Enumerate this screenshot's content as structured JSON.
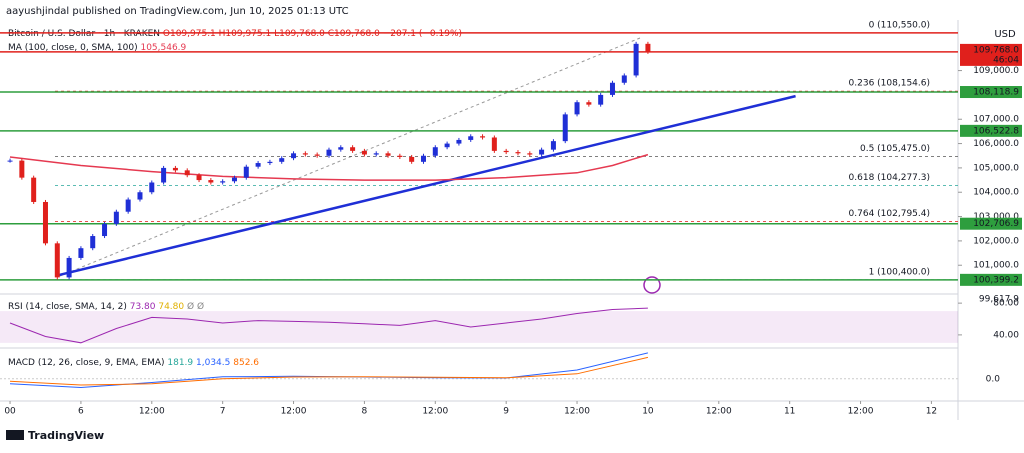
{
  "header": {
    "byline": "aayushjindal published on TradingView.com, Jun 10, 2025 01:13 UTC"
  },
  "chart_data": {
    "type": "candlestick",
    "symbol": "Bitcoin / U.S. Dollar · 1h · KRAKEN",
    "ohlc": "O109,975.1 H109,975.1 L109,768.0 C109,768.0 −207.1 (−0.19%)",
    "currency": "USD",
    "color_up": "#1f2fd6",
    "color_down": "#e0201c",
    "x": [
      0,
      2,
      4,
      6,
      8,
      10,
      12,
      14,
      16,
      18,
      20,
      22,
      24,
      26,
      28,
      30,
      32,
      34,
      36,
      38,
      40,
      42,
      44,
      46,
      48,
      50,
      52,
      54,
      56,
      58,
      60,
      62,
      64,
      66,
      68,
      70,
      72,
      74,
      76,
      78,
      80,
      82,
      84,
      86,
      88,
      90,
      92,
      94,
      96,
      98,
      100,
      102,
      104,
      106,
      108
    ],
    "values": [
      105300,
      104600,
      103600,
      101900,
      100500,
      101300,
      101700,
      102200,
      102700,
      103200,
      103700,
      104000,
      104400,
      105000,
      104900,
      104700,
      104500,
      104400,
      104450,
      104600,
      105050,
      105200,
      105250,
      105400,
      105600,
      105550,
      105500,
      105750,
      105850,
      105700,
      105550,
      105600,
      105500,
      105450,
      105250,
      105500,
      105850,
      106000,
      106150,
      106300,
      106250,
      105700,
      105650,
      105600,
      105550,
      105750,
      106100,
      107200,
      107700,
      107600,
      108000,
      108500,
      108800,
      110100,
      109768
    ],
    "xlim": [
      -1.7,
      160.5
    ],
    "xticks": [
      {
        "value": 0,
        "label": "00"
      },
      {
        "value": 12,
        "label": "6"
      },
      {
        "value": 24,
        "label": "12:00"
      },
      {
        "value": 36,
        "label": "7"
      },
      {
        "value": 48,
        "label": "12:00"
      },
      {
        "value": 60,
        "label": "8"
      },
      {
        "value": 72,
        "label": "12:00"
      },
      {
        "value": 84,
        "label": "9"
      },
      {
        "value": 96,
        "label": "12:00"
      },
      {
        "value": 108,
        "label": "10"
      },
      {
        "value": 120,
        "label": "12:00"
      },
      {
        "value": 132,
        "label": "11"
      },
      {
        "value": 144,
        "label": "12:00"
      },
      {
        "value": 156,
        "label": "12"
      }
    ],
    "ylim": [
      99900,
      110750
    ],
    "yticks": [
      {
        "value": 109000,
        "label": "109,000.0"
      },
      {
        "value": 107000,
        "label": "107,000.0"
      },
      {
        "value": 106000,
        "label": "106,000.0"
      },
      {
        "value": 105000,
        "label": "105,000.0"
      },
      {
        "value": 104000,
        "label": "104,000.0"
      },
      {
        "value": 103000,
        "label": "103,000.0"
      },
      {
        "value": 102000,
        "label": "102,000.0"
      },
      {
        "value": 101000,
        "label": "101,000.0"
      }
    ],
    "ma": {
      "label": "MA (100, close, 0, SMA, 100)",
      "value_label": "105,546.9",
      "color": "#e53950",
      "x": [
        0,
        12,
        24,
        36,
        48,
        60,
        72,
        84,
        96,
        102,
        108
      ],
      "values": [
        105450,
        105100,
        104850,
        104650,
        104550,
        104500,
        104500,
        104600,
        104800,
        105100,
        105546.9
      ]
    },
    "trendline": {
      "color": "#1f2fd6",
      "x": [
        8,
        133
      ],
      "values": [
        100580,
        107950
      ]
    },
    "levels": {
      "color": "#2e9e3e",
      "items": [
        {
          "value": 108118.9,
          "label": "108,118.9"
        },
        {
          "value": 106522.8,
          "label": "106,522.8"
        },
        {
          "value": 102706.9,
          "label": "102,706.9"
        },
        {
          "value": 100399.2,
          "label": "100,399.2"
        }
      ]
    },
    "last_price": {
      "value": 109768,
      "label": "109,768.0",
      "countdown": "46:04",
      "color": "#e0201c"
    },
    "low_badge": {
      "value": 99617.9,
      "label": "99,617.9"
    },
    "fib": [
      {
        "value": 110550,
        "label": "0 (110,550.0)",
        "color": "#8a8a8a"
      },
      {
        "value": 108154.6,
        "label": "0.236 (108,154.6)",
        "color": "#e53935"
      },
      {
        "value": 105475,
        "label": "0.5 (105,475.0)",
        "color": "#555555"
      },
      {
        "value": 104277.3,
        "label": "0.618 (104,277.3)",
        "color": "#26a69a"
      },
      {
        "value": 102795.4,
        "label": "0.764 (102,795.4)",
        "color": "#e53935"
      },
      {
        "value": 100400,
        "label": "1 (100,400.0)",
        "color": "#2196f3"
      }
    ],
    "rsi": {
      "label": "RSI (14, close, SMA, 14, 2)",
      "value_label": "73.80",
      "sma_label": "74.80",
      "extra": [
        "Ø",
        "Ø"
      ],
      "color": "#9c27b0",
      "ylim": [
        26,
        89
      ],
      "band": [
        30,
        70
      ],
      "yticks": [
        {
          "value": 80,
          "label": "80.00"
        },
        {
          "value": 40,
          "label": "40.00"
        }
      ],
      "x": [
        0,
        6,
        12,
        18,
        24,
        30,
        36,
        42,
        48,
        54,
        60,
        66,
        72,
        78,
        84,
        90,
        96,
        102,
        108
      ],
      "values": [
        55,
        38,
        30,
        48,
        62,
        60,
        55,
        58,
        57,
        56,
        54,
        52,
        58,
        50,
        55,
        60,
        67,
        72,
        73.8
      ]
    },
    "macd": {
      "label": "MACD (12, 26, close, 9, EMA, EMA)",
      "hist_label": "181.9",
      "macd_label": "1,034.5",
      "signal_label": "852.6",
      "ylim": [
        -850,
        1150
      ],
      "yticks": [
        {
          "value": 0,
          "label": "0.0"
        }
      ],
      "x": [
        0,
        12,
        24,
        36,
        48,
        60,
        72,
        84,
        96,
        108
      ],
      "macd": [
        -200,
        -350,
        -150,
        80,
        100,
        70,
        40,
        30,
        350,
        1034.5
      ],
      "signal": [
        -100,
        -250,
        -200,
        0,
        70,
        80,
        60,
        40,
        200,
        852.6
      ]
    }
  },
  "footer": {
    "brand": "TradingView"
  }
}
